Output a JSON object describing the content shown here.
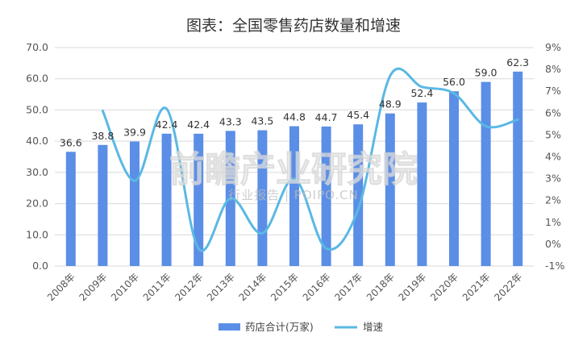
{
  "chart_data": {
    "type": "bar+line",
    "title": "图表：全国零售药店数量和增速",
    "categories": [
      "2008年",
      "2009年",
      "2010年",
      "2011年",
      "2012年",
      "2013年",
      "2014年",
      "2015年",
      "2016年",
      "2017年",
      "2018年",
      "2019年",
      "2020年",
      "2021年",
      "2022年"
    ],
    "series": [
      {
        "name": "药店合计(万家)",
        "type": "bar",
        "axis": "left",
        "color": "#5b8ee6",
        "values": [
          36.6,
          38.8,
          39.9,
          42.4,
          42.4,
          43.3,
          43.5,
          44.8,
          44.7,
          45.4,
          48.9,
          52.4,
          56.0,
          59.0,
          62.3
        ],
        "labels": [
          "36.6",
          "38.8",
          "39.9",
          "42.4",
          "42.4",
          "43.3",
          "43.5",
          "44.8",
          "44.7",
          "45.4",
          "48.9",
          "52.4",
          "56.0",
          "59.0",
          "62.3"
        ]
      },
      {
        "name": "增速",
        "type": "line",
        "axis": "right",
        "color": "#5ab8e4",
        "values": [
          null,
          6.1,
          2.9,
          6.2,
          -0.2,
          2.1,
          0.5,
          3.0,
          -0.2,
          1.6,
          7.7,
          7.2,
          6.9,
          5.4,
          5.7
        ]
      }
    ],
    "y_left": {
      "min": 0,
      "max": 70,
      "step": 10,
      "tick_labels": [
        "0.0",
        "10.0",
        "20.0",
        "30.0",
        "40.0",
        "50.0",
        "60.0",
        "70.0"
      ]
    },
    "y_right": {
      "min": -1,
      "max": 9,
      "step": 1,
      "tick_labels": [
        "-1%",
        "0%",
        "1%",
        "2%",
        "3%",
        "4%",
        "5%",
        "6%",
        "7%",
        "8%",
        "9%"
      ]
    },
    "grid": true,
    "legend": "bottom-center"
  },
  "watermark": {
    "main": "前瞻产业研究院",
    "sub": "行业报告 | POIPO.CN"
  }
}
